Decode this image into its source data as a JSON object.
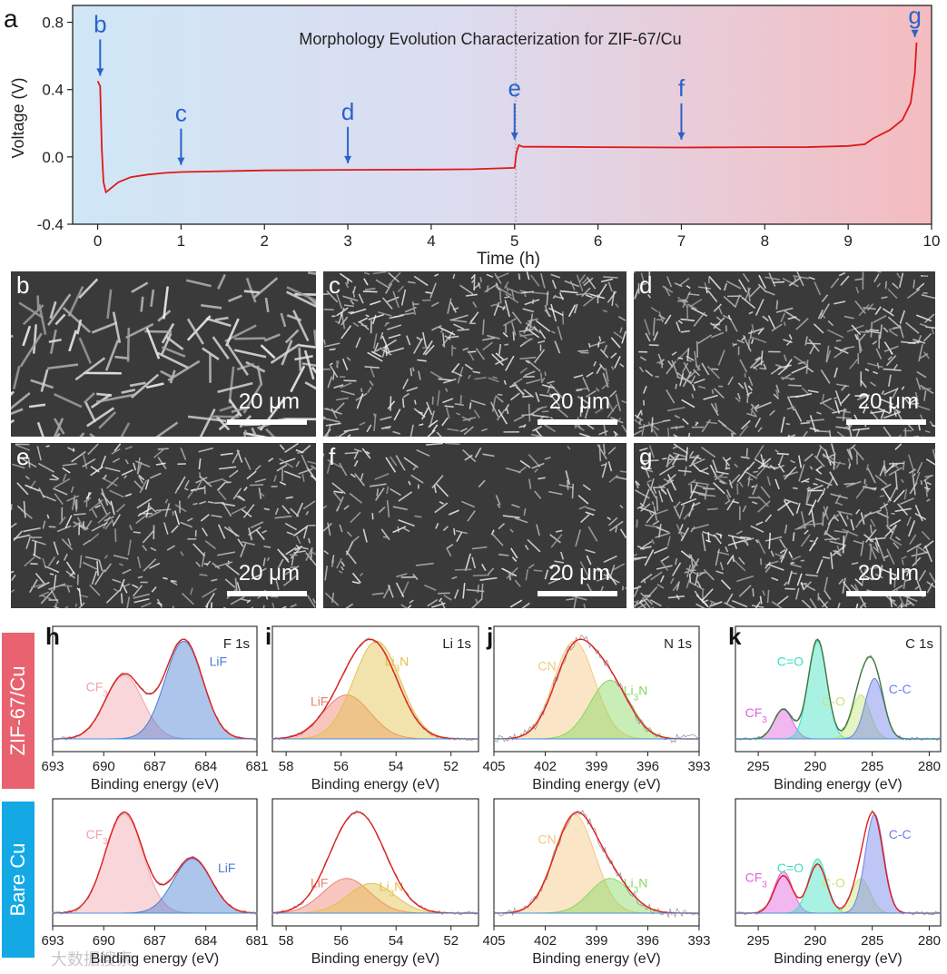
{
  "panel_a": {
    "letter": "a",
    "title": "Morphology Evolution Characterization for ZIF-67/Cu",
    "xlabel": "Time (h)",
    "ylabel": "Voltage (V)",
    "xticks": [
      "0",
      "1",
      "2",
      "3",
      "4",
      "5",
      "6",
      "7",
      "8",
      "9",
      "10"
    ],
    "yticks": [
      "-0.4",
      "0.0",
      "0.4",
      "0.8"
    ],
    "markers": [
      {
        "label": "b",
        "t": 0.03,
        "v": 0.45
      },
      {
        "label": "c",
        "t": 1.0,
        "v": -0.08
      },
      {
        "label": "d",
        "t": 3.0,
        "v": -0.07
      },
      {
        "label": "e",
        "t": 5.0,
        "v": 0.07
      },
      {
        "label": "f",
        "t": 7.0,
        "v": 0.07
      },
      {
        "label": "g",
        "t": 9.8,
        "v": 0.68
      }
    ]
  },
  "sem_panels": [
    {
      "letter": "b",
      "scale": "20 μm"
    },
    {
      "letter": "c",
      "scale": "20 μm"
    },
    {
      "letter": "d",
      "scale": "20 μm"
    },
    {
      "letter": "e",
      "scale": "20 μm"
    },
    {
      "letter": "f",
      "scale": "20 μm"
    },
    {
      "letter": "g",
      "scale": "20 μm"
    }
  ],
  "row_labels": {
    "zif": "ZIF-67/Cu",
    "bare": "Bare Cu"
  },
  "watermark": "大数据搜索",
  "xps": {
    "xlabel": "Binding energy (eV)",
    "letters": [
      "h",
      "i",
      "j",
      "k"
    ],
    "titles": [
      "F 1s",
      "Li 1s",
      "N 1s",
      "C 1s"
    ],
    "ticks": [
      [
        "693",
        "690",
        "687",
        "684",
        "681"
      ],
      [
        "58",
        "56",
        "54",
        "52"
      ],
      [
        "405",
        "402",
        "399",
        "396",
        "393"
      ],
      [
        "295",
        "290",
        "285",
        "280"
      ]
    ],
    "peaks": {
      "h": [
        "CF3",
        "LiF"
      ],
      "i": [
        "LiF",
        "Li3N"
      ],
      "j": [
        "CN",
        "Li3N"
      ],
      "k": [
        "CF3",
        "C=O",
        "C-O",
        "C-C"
      ]
    }
  },
  "chart_data": [
    {
      "type": "line",
      "title": "Morphology Evolution Characterization for ZIF-67/Cu",
      "xlabel": "Time (h)",
      "ylabel": "Voltage (V)",
      "xlim": [
        -0.3,
        10
      ],
      "ylim": [
        -0.4,
        0.9
      ],
      "series": [
        {
          "name": "ZIF-67/Cu",
          "x": [
            0.0,
            0.03,
            0.05,
            0.07,
            0.1,
            0.15,
            0.25,
            0.4,
            0.6,
            0.8,
            1.0,
            1.5,
            2.0,
            3.0,
            4.0,
            4.5,
            5.0,
            5.02,
            5.05,
            5.1,
            5.3,
            6.0,
            7.0,
            8.0,
            8.5,
            9.0,
            9.2,
            9.3,
            9.5,
            9.65,
            9.75,
            9.8,
            9.82
          ],
          "y": [
            0.45,
            0.42,
            0.05,
            -0.15,
            -0.21,
            -0.19,
            -0.15,
            -0.12,
            -0.105,
            -0.095,
            -0.09,
            -0.085,
            -0.08,
            -0.077,
            -0.075,
            -0.073,
            -0.065,
            0.02,
            0.07,
            0.06,
            0.06,
            0.058,
            0.056,
            0.058,
            0.058,
            0.065,
            0.075,
            0.11,
            0.16,
            0.22,
            0.32,
            0.5,
            0.68
          ]
        }
      ]
    },
    {
      "type": "line",
      "title": "h  F 1s (ZIF-67/Cu)",
      "xlabel": "Binding energy (eV)",
      "x_reversed": true,
      "xlim": [
        681,
        693
      ],
      "series": [
        {
          "name": "CF3",
          "center": 688.8,
          "rel_intensity": 0.65
        },
        {
          "name": "LiF",
          "center": 685.3,
          "rel_intensity": 1.0
        }
      ]
    },
    {
      "type": "line",
      "title": "i  Li 1s (ZIF-67/Cu)",
      "xlabel": "Binding energy (eV)",
      "x_reversed": true,
      "xlim": [
        51,
        58.5
      ],
      "series": [
        {
          "name": "LiF",
          "center": 55.8,
          "rel_intensity": 0.45
        },
        {
          "name": "Li3N",
          "center": 54.7,
          "rel_intensity": 1.0
        }
      ]
    },
    {
      "type": "line",
      "title": "j  N 1s (ZIF-67/Cu)",
      "xlabel": "Binding energy (eV)",
      "x_reversed": true,
      "xlim": [
        393,
        405
      ],
      "series": [
        {
          "name": "CN",
          "center": 400.3,
          "rel_intensity": 1.0
        },
        {
          "name": "Li3N",
          "center": 398.2,
          "rel_intensity": 0.6
        }
      ]
    },
    {
      "type": "line",
      "title": "k  C 1s (ZIF-67/Cu)",
      "xlabel": "Binding energy (eV)",
      "x_reversed": true,
      "xlim": [
        279,
        297
      ],
      "series": [
        {
          "name": "CF3",
          "center": 292.8,
          "rel_intensity": 0.3
        },
        {
          "name": "C=O",
          "center": 289.8,
          "rel_intensity": 1.0
        },
        {
          "name": "C-O",
          "center": 286.0,
          "rel_intensity": 0.45
        },
        {
          "name": "C-C",
          "center": 284.8,
          "rel_intensity": 0.62
        }
      ]
    },
    {
      "type": "line",
      "title": "F 1s (Bare Cu)",
      "xlabel": "Binding energy (eV)",
      "x_reversed": true,
      "xlim": [
        681,
        693
      ],
      "series": [
        {
          "name": "CF3",
          "center": 688.8,
          "rel_intensity": 1.0
        },
        {
          "name": "LiF",
          "center": 684.8,
          "rel_intensity": 0.55
        }
      ]
    },
    {
      "type": "line",
      "title": "Li 1s (Bare Cu)",
      "xlabel": "Binding energy (eV)",
      "x_reversed": true,
      "xlim": [
        51,
        58.5
      ],
      "series": [
        {
          "name": "LiF",
          "center": 55.8,
          "rel_intensity": 0.35
        },
        {
          "name": "Li3N",
          "center": 54.9,
          "rel_intensity": 0.3
        }
      ]
    },
    {
      "type": "line",
      "title": "N 1s (Bare Cu)",
      "xlabel": "Binding energy (eV)",
      "x_reversed": true,
      "xlim": [
        393,
        405
      ],
      "series": [
        {
          "name": "CN",
          "center": 400.3,
          "rel_intensity": 1.0
        },
        {
          "name": "Li3N",
          "center": 398.2,
          "rel_intensity": 0.35
        }
      ]
    },
    {
      "type": "line",
      "title": "C 1s (Bare Cu)",
      "xlabel": "Binding energy (eV)",
      "x_reversed": true,
      "xlim": [
        279,
        297
      ],
      "series": [
        {
          "name": "CF3",
          "center": 292.8,
          "rel_intensity": 0.42
        },
        {
          "name": "C=O",
          "center": 289.8,
          "rel_intensity": 0.55
        },
        {
          "name": "C-O",
          "center": 286.0,
          "rel_intensity": 0.35
        },
        {
          "name": "C-C",
          "center": 284.8,
          "rel_intensity": 1.0
        }
      ]
    }
  ],
  "colors": {
    "curve": "#e01818",
    "marker": "#2a62c8",
    "bg_left": "#cfe7f6",
    "bg_right": "#f4bcc0",
    "zif_tag": "#e8636f",
    "bare_tag": "#14a9e5",
    "cf3": "#f2a3ab",
    "lif_h": "#4a7ed2",
    "lif_i": "#f08070",
    "li3n_i": "#e2c24a",
    "cn": "#f4c880",
    "li3n_j": "#86d860",
    "co_eq": "#40e0c0",
    "co_single": "#c6e67a",
    "cc": "#6f80e8",
    "cf3_k": "#e060e0"
  }
}
